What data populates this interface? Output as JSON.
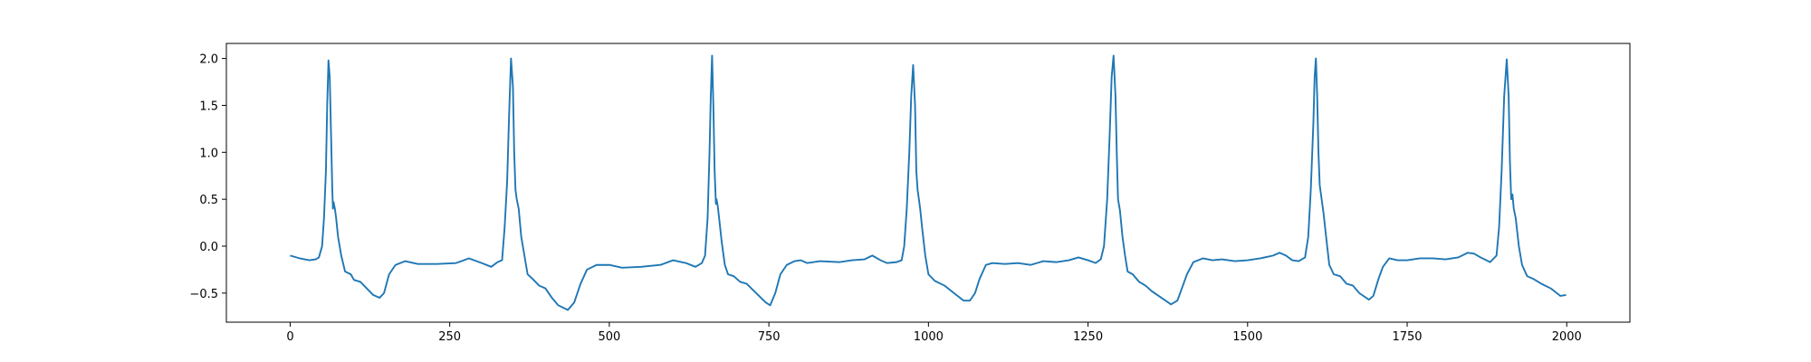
{
  "chart_data": {
    "type": "line",
    "color": "#1f77b4",
    "xlim": [
      -99.95,
      2098.95
    ],
    "ylim": [
      -0.81,
      2.16
    ],
    "xticks": [
      0,
      250,
      500,
      750,
      1000,
      1250,
      1500,
      1750,
      2000
    ],
    "yticks": [
      {
        "value": -0.5,
        "label": "−0.5"
      },
      {
        "value": 0,
        "label": "0.0"
      },
      0.5,
      {
        "value": 1,
        "label": "1.0"
      },
      1.5,
      {
        "value": 2,
        "label": "2.0"
      }
    ],
    "x": [
      0,
      15,
      30,
      40,
      45,
      50,
      53,
      56,
      58,
      60,
      62,
      64,
      66,
      67,
      68,
      70,
      72,
      75,
      80,
      86,
      95,
      100,
      110,
      120,
      130,
      140,
      147,
      155,
      165,
      180,
      200,
      230,
      260,
      280,
      300,
      315,
      325,
      332,
      336,
      340,
      343,
      346,
      349,
      351,
      353,
      355,
      358,
      362,
      367,
      372,
      380,
      390,
      400,
      410,
      420,
      435,
      445,
      455,
      465,
      480,
      500,
      520,
      550,
      580,
      600,
      620,
      635,
      645,
      650,
      654,
      657,
      659,
      661,
      663,
      665,
      667,
      668,
      670,
      672,
      676,
      681,
      686,
      695,
      705,
      715,
      730,
      745,
      752,
      760,
      768,
      778,
      790,
      800,
      810,
      830,
      860,
      880,
      900,
      912,
      925,
      935,
      950,
      958,
      962,
      966,
      970,
      973,
      976,
      979,
      981,
      983,
      987,
      990,
      995,
      1000,
      1010,
      1025,
      1040,
      1055,
      1065,
      1073,
      1080,
      1090,
      1100,
      1120,
      1140,
      1160,
      1180,
      1200,
      1220,
      1235,
      1250,
      1262,
      1270,
      1275,
      1280,
      1284,
      1287,
      1290,
      1293,
      1295,
      1297,
      1300,
      1304,
      1308,
      1312,
      1320,
      1330,
      1340,
      1350,
      1365,
      1380,
      1390,
      1397,
      1405,
      1415,
      1430,
      1445,
      1460,
      1480,
      1500,
      1520,
      1540,
      1550,
      1560,
      1570,
      1580,
      1590,
      1595,
      1599,
      1603,
      1605,
      1607,
      1609,
      1611,
      1613,
      1616,
      1619,
      1623,
      1628,
      1635,
      1645,
      1655,
      1665,
      1675,
      1690,
      1697,
      1705,
      1712,
      1722,
      1735,
      1750,
      1770,
      1790,
      1810,
      1830,
      1845,
      1855,
      1865,
      1880,
      1890,
      1894,
      1898,
      1902,
      1906,
      1909,
      1911,
      1913,
      1915,
      1917,
      1920,
      1925,
      1930,
      1938,
      1948,
      1960,
      1975,
      1990,
      1999
    ],
    "values": [
      -0.1,
      -0.13,
      -0.15,
      -0.14,
      -0.12,
      0.0,
      0.3,
      0.8,
      1.5,
      1.98,
      1.8,
      1.2,
      0.6,
      0.4,
      0.47,
      0.4,
      0.3,
      0.1,
      -0.1,
      -0.27,
      -0.3,
      -0.36,
      -0.38,
      -0.45,
      -0.52,
      -0.55,
      -0.5,
      -0.3,
      -0.2,
      -0.16,
      -0.19,
      -0.19,
      -0.18,
      -0.13,
      -0.18,
      -0.22,
      -0.17,
      -0.15,
      0.2,
      0.7,
      1.4,
      2.0,
      1.7,
      1.0,
      0.6,
      0.5,
      0.4,
      0.1,
      -0.1,
      -0.3,
      -0.35,
      -0.42,
      -0.45,
      -0.55,
      -0.63,
      -0.68,
      -0.6,
      -0.4,
      -0.25,
      -0.2,
      -0.2,
      -0.23,
      -0.22,
      -0.2,
      -0.15,
      -0.18,
      -0.22,
      -0.18,
      -0.1,
      0.3,
      1.0,
      1.6,
      2.03,
      1.5,
      0.8,
      0.45,
      0.5,
      0.42,
      0.3,
      0.05,
      -0.2,
      -0.3,
      -0.32,
      -0.38,
      -0.4,
      -0.5,
      -0.6,
      -0.63,
      -0.5,
      -0.3,
      -0.2,
      -0.16,
      -0.15,
      -0.18,
      -0.16,
      -0.17,
      -0.15,
      -0.14,
      -0.1,
      -0.15,
      -0.18,
      -0.17,
      -0.15,
      0.0,
      0.4,
      1.0,
      1.6,
      1.93,
      1.5,
      0.8,
      0.6,
      0.4,
      0.2,
      -0.1,
      -0.3,
      -0.37,
      -0.42,
      -0.5,
      -0.58,
      -0.58,
      -0.5,
      -0.35,
      -0.2,
      -0.18,
      -0.19,
      -0.18,
      -0.2,
      -0.16,
      -0.17,
      -0.15,
      -0.12,
      -0.15,
      -0.18,
      -0.14,
      0.0,
      0.5,
      1.2,
      1.8,
      2.03,
      1.6,
      1.0,
      0.5,
      0.38,
      0.1,
      -0.1,
      -0.27,
      -0.3,
      -0.38,
      -0.42,
      -0.48,
      -0.55,
      -0.62,
      -0.58,
      -0.45,
      -0.3,
      -0.17,
      -0.13,
      -0.15,
      -0.14,
      -0.16,
      -0.15,
      -0.13,
      -0.1,
      -0.07,
      -0.1,
      -0.15,
      -0.16,
      -0.12,
      0.1,
      0.6,
      1.3,
      1.8,
      2.0,
      1.6,
      1.0,
      0.65,
      0.5,
      0.35,
      0.1,
      -0.2,
      -0.3,
      -0.32,
      -0.4,
      -0.42,
      -0.5,
      -0.57,
      -0.53,
      -0.35,
      -0.22,
      -0.13,
      -0.15,
      -0.15,
      -0.13,
      -0.13,
      -0.14,
      -0.12,
      -0.07,
      -0.08,
      -0.12,
      -0.17,
      -0.1,
      0.2,
      0.8,
      1.6,
      1.99,
      1.6,
      0.9,
      0.5,
      0.55,
      0.4,
      0.3,
      0.0,
      -0.2,
      -0.32,
      -0.35,
      -0.4,
      -0.45,
      -0.53,
      -0.52
    ]
  }
}
